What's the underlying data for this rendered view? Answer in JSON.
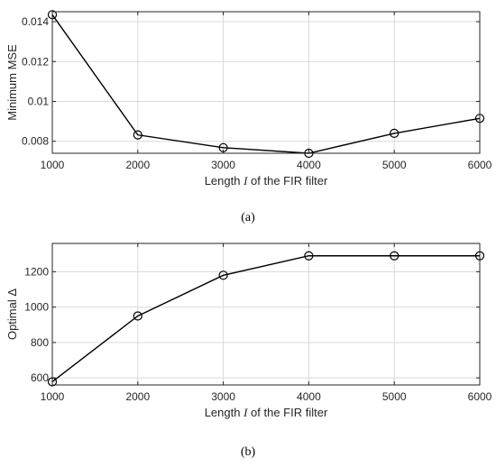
{
  "chart_data": [
    {
      "type": "line",
      "caption": "(a)",
      "x": [
        1000,
        2000,
        3000,
        4000,
        5000,
        6000
      ],
      "values": [
        0.01435,
        0.00832,
        0.00768,
        0.0074,
        0.0084,
        0.00915
      ],
      "xlabel_parts": [
        "Length ",
        "I",
        " of the FIR filter"
      ],
      "ylabel": "Minimum MSE",
      "xlim": [
        1000,
        6000
      ],
      "ylim": [
        0.0074,
        0.0145
      ],
      "xticks": [
        1000,
        2000,
        3000,
        4000,
        5000,
        6000
      ],
      "xtick_labels": [
        "1000",
        "2000",
        "3000",
        "4000",
        "5000",
        "6000"
      ],
      "yticks": [
        0.008,
        0.01,
        0.012,
        0.014
      ],
      "ytick_labels": [
        "0.008",
        "0.01",
        "0.012",
        "0.014"
      ],
      "grid": true,
      "marker": "circle",
      "color": "#000000"
    },
    {
      "type": "line",
      "caption": "(b)",
      "x": [
        1000,
        2000,
        3000,
        4000,
        5000,
        6000
      ],
      "values": [
        578,
        950,
        1180,
        1290,
        1290,
        1290
      ],
      "xlabel_parts": [
        "Length ",
        "I",
        " of the FIR filter"
      ],
      "ylabel": "Optimal Δ",
      "xlim": [
        1000,
        6000
      ],
      "ylim": [
        560,
        1360
      ],
      "xticks": [
        1000,
        2000,
        3000,
        4000,
        5000,
        6000
      ],
      "xtick_labels": [
        "1000",
        "2000",
        "3000",
        "4000",
        "5000",
        "6000"
      ],
      "yticks": [
        600,
        800,
        1000,
        1200
      ],
      "ytick_labels": [
        "600",
        "800",
        "1000",
        "1200"
      ],
      "grid": true,
      "marker": "circle",
      "color": "#000000"
    }
  ]
}
